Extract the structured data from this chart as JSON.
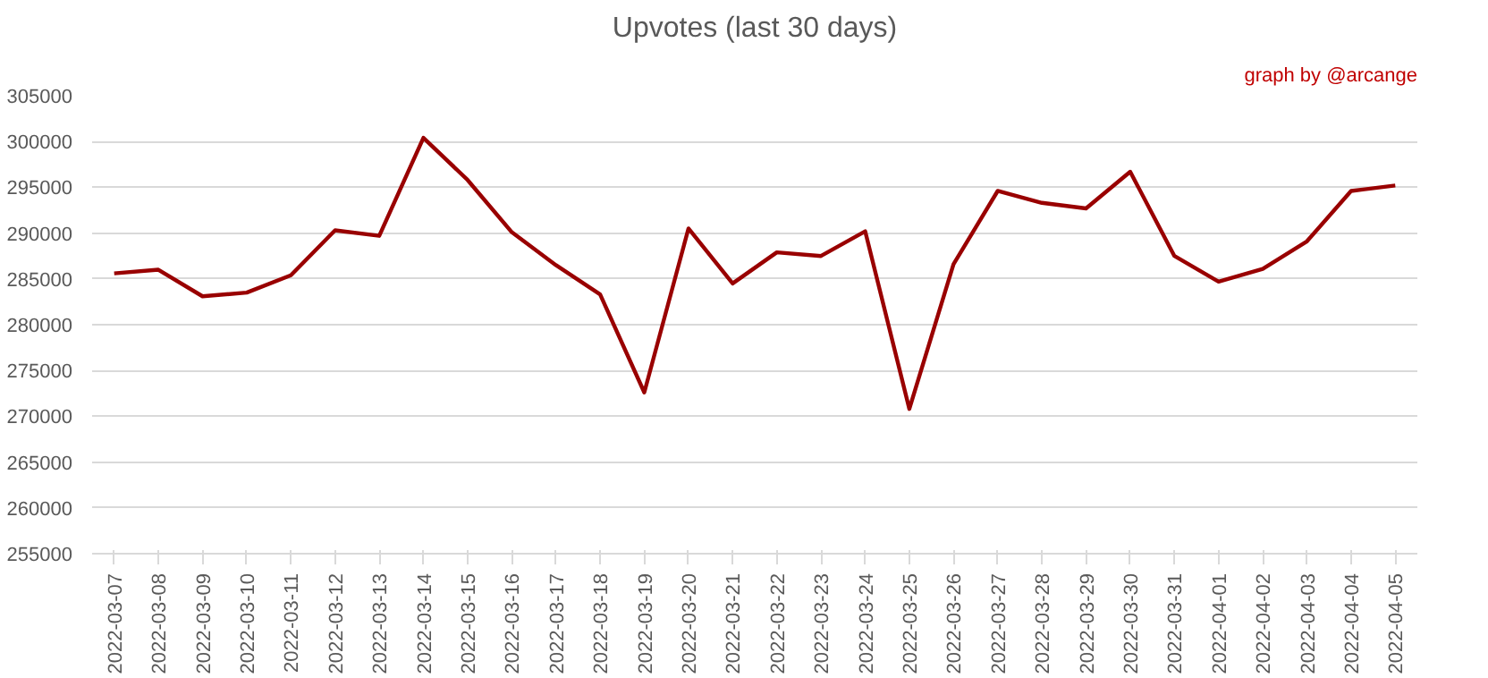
{
  "chart_data": {
    "type": "line",
    "title": "Upvotes (last 30 days)",
    "annotations": [
      "graph by @arcange"
    ],
    "categories": [
      "2022-03-07",
      "2022-03-08",
      "2022-03-09",
      "2022-03-10",
      "2022-03-11",
      "2022-03-12",
      "2022-03-13",
      "2022-03-14",
      "2022-03-15",
      "2022-03-16",
      "2022-03-17",
      "2022-03-18",
      "2022-03-19",
      "2022-03-20",
      "2022-03-21",
      "2022-03-22",
      "2022-03-23",
      "2022-03-24",
      "2022-03-25",
      "2022-03-26",
      "2022-03-27",
      "2022-03-28",
      "2022-03-29",
      "2022-03-30",
      "2022-03-31",
      "2022-04-01",
      "2022-04-02",
      "2022-04-03",
      "2022-04-04",
      "2022-04-05"
    ],
    "series": [
      {
        "color": "#990000",
        "values": [
          285600,
          286000,
          283100,
          283500,
          285400,
          290300,
          289700,
          300400,
          295800,
          290100,
          286500,
          283300,
          272600,
          290500,
          284500,
          287900,
          287500,
          290200,
          270800,
          286600,
          294600,
          293300,
          292700,
          296700,
          287500,
          284700,
          286100,
          289100,
          294600,
          295200
        ]
      }
    ],
    "ylim": [
      255000,
      305000
    ],
    "yticks": [
      255000,
      260000,
      265000,
      270000,
      275000,
      280000,
      285000,
      290000,
      295000,
      300000,
      305000
    ],
    "grid": "y",
    "marker": "none",
    "line_style": "solid"
  }
}
